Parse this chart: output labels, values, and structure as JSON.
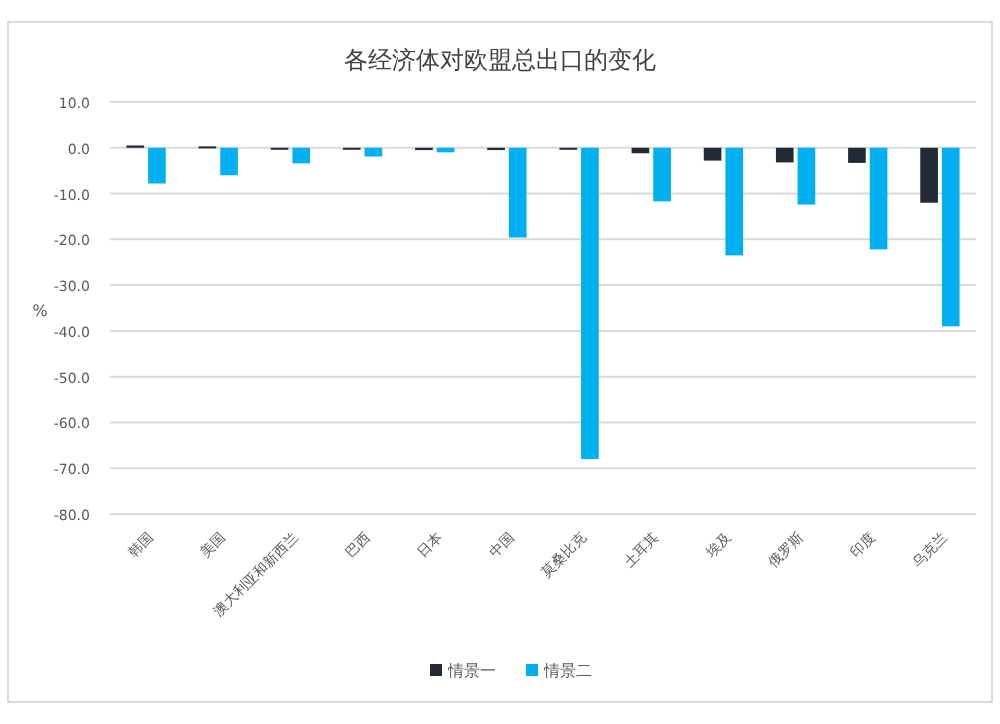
{
  "chart_data": {
    "type": "bar",
    "title": "各经济体对欧盟总出口的变化",
    "ylabel": "%",
    "categories": [
      "韩国",
      "美国",
      "澳大利亚和新西兰",
      "巴西",
      "日本",
      "中国",
      "莫桑比克",
      "土耳其",
      "埃及",
      "俄罗斯",
      "印度",
      "乌克兰"
    ],
    "series": [
      {
        "name": "情景一",
        "color": "#222a35",
        "values": [
          0.5,
          0.3,
          -0.3,
          -0.2,
          -0.5,
          -0.5,
          -0.3,
          -1.2,
          -2.8,
          -3.2,
          -3.3,
          -12.0
        ]
      },
      {
        "name": "情景二",
        "color": "#00b0f0",
        "values": [
          -7.8,
          -6.0,
          -3.4,
          -1.9,
          -1.0,
          -19.6,
          -68.0,
          -11.7,
          -23.5,
          -12.4,
          -22.2,
          -39.0
        ]
      }
    ],
    "ylim": [
      -80,
      10
    ],
    "yticks": [
      {
        "value": 10,
        "label": "10.0"
      },
      {
        "value": 0,
        "label": "0.0"
      },
      {
        "value": -10,
        "label": "-10.0"
      },
      {
        "value": -20,
        "label": "-20.0"
      },
      {
        "value": -30,
        "label": "-30.0"
      },
      {
        "value": -40,
        "label": "-40.0"
      },
      {
        "value": -50,
        "label": "-50.0"
      },
      {
        "value": -60,
        "label": "-60.0"
      },
      {
        "value": -70,
        "label": "-70.0"
      },
      {
        "value": -80,
        "label": "-80.0"
      }
    ],
    "grid": "y",
    "legend": "bottom"
  }
}
